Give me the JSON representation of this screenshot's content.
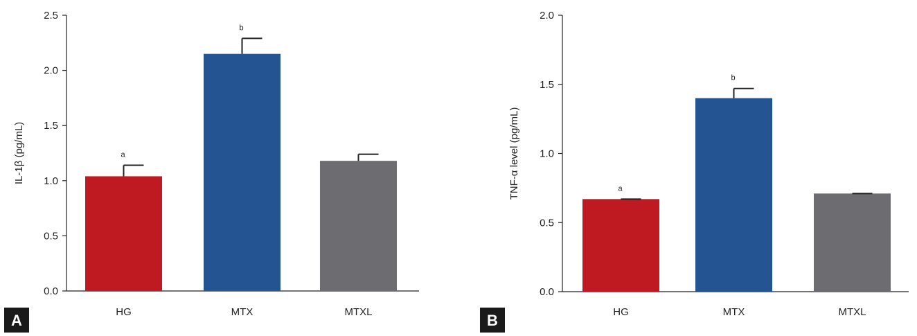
{
  "chart_data": [
    {
      "type": "bar",
      "panel": "A",
      "categories": [
        "HG",
        "MTX",
        "MTXL"
      ],
      "values": [
        1.04,
        2.15,
        1.18
      ],
      "errors": [
        0.1,
        0.14,
        0.06
      ],
      "significance": [
        "a",
        "b",
        ""
      ],
      "colors": [
        "#bf1a22",
        "#245492",
        "#6d6d71"
      ],
      "ylabel": "IL-1β (pg/mL)",
      "ylim": [
        0,
        2.5
      ],
      "yticks": [
        "0.0",
        "0.5",
        "1.0",
        "1.5",
        "2.0",
        "2.5"
      ],
      "grid": false,
      "legend": "none"
    },
    {
      "type": "bar",
      "panel": "B",
      "categories": [
        "HG",
        "MTX",
        "MTXL"
      ],
      "values": [
        0.67,
        1.4,
        0.71
      ],
      "errors": [
        0.0,
        0.07,
        0.0
      ],
      "significance": [
        "a",
        "b",
        ""
      ],
      "colors": [
        "#bf1a22",
        "#245492",
        "#6d6d71"
      ],
      "ylabel": "TNF-α level (pg/mL)",
      "ylim": [
        0,
        2.0
      ],
      "yticks": [
        "0.0",
        "0.5",
        "1.0",
        "1.5",
        "2.0"
      ],
      "grid": false,
      "legend": "none"
    }
  ]
}
